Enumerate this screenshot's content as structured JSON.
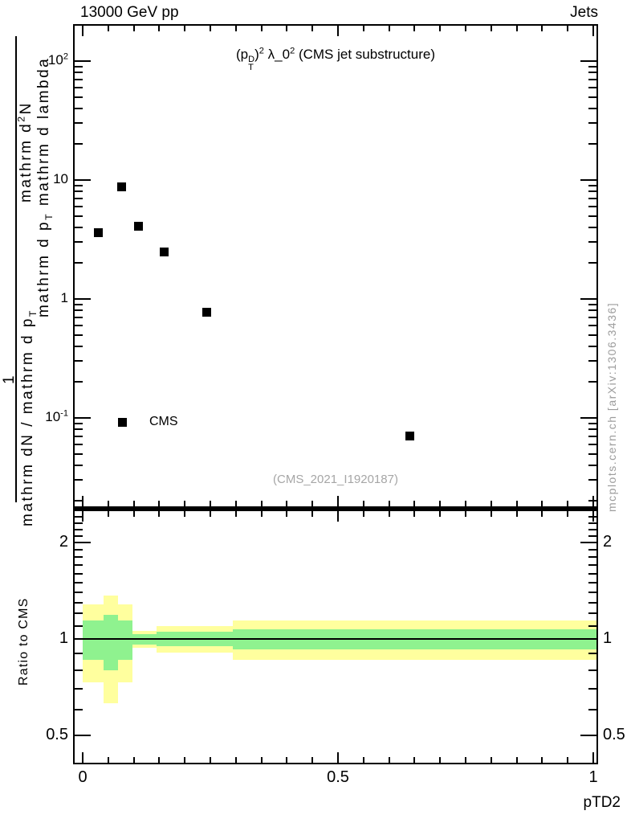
{
  "header": {
    "left": "13000 GeV pp",
    "right": "Jets"
  },
  "side_note": "mcplots.cern.ch [arXiv:1306.3436]",
  "colors": {
    "band_outer": "#ffff9e",
    "band_inner": "#8ff28f",
    "muted_text": "#a6a6a6",
    "marker": "#000000",
    "axis": "#000000"
  },
  "top_panel": {
    "title_segments": [
      {
        "t": "(p"
      },
      {
        "stack": {
          "top": "D",
          "bottom": "T"
        }
      },
      {
        "t": ")"
      },
      {
        "t": "2",
        "sup": true
      },
      {
        "t": " λ_0"
      },
      {
        "t": "2",
        "sup": true
      },
      {
        "t": " (CMS jet substructure)"
      }
    ],
    "legend": {
      "label": "CMS",
      "marker": "filled-square"
    },
    "ref_label": "(CMS_2021_I1920187)",
    "ylabel": {
      "numerator_1": "1",
      "denominator_1_segments": [
        {
          "t": "mathrm dN / mathrm d p"
        },
        {
          "t": "T",
          "sub": true
        }
      ],
      "numerator_2_segments": [
        {
          "t": "mathrm d"
        },
        {
          "t": "2",
          "sup": true
        },
        {
          "t": "N"
        }
      ],
      "denominator_2_segments": [
        {
          "t": "mathrm d p"
        },
        {
          "t": "T",
          "sub": true
        },
        {
          "t": " mathrm d lambda"
        }
      ]
    },
    "yticks_major": [
      {
        "v": 100,
        "segs": [
          {
            "t": "10"
          },
          {
            "t": "2",
            "sup": true
          }
        ]
      },
      {
        "v": 10,
        "segs": [
          {
            "t": "10"
          }
        ]
      },
      {
        "v": 1,
        "segs": [
          {
            "t": "1"
          }
        ]
      },
      {
        "v": 0.1,
        "segs": [
          {
            "t": "10"
          },
          {
            "t": "-1",
            "sup": true
          }
        ]
      }
    ],
    "yticks_minor": [
      0.02,
      0.03,
      0.04,
      0.05,
      0.06,
      0.07,
      0.08,
      0.09,
      0.2,
      0.3,
      0.4,
      0.5,
      0.6,
      0.7,
      0.8,
      0.9,
      2,
      3,
      4,
      5,
      6,
      7,
      8,
      9,
      20,
      30,
      40,
      50,
      60,
      70,
      80,
      90
    ]
  },
  "x_axis": {
    "label": "pTD2",
    "ticks_major": [
      {
        "v": 0,
        "label": "0"
      },
      {
        "v": 0.5,
        "label": "0.5"
      },
      {
        "v": 1,
        "label": "1"
      }
    ],
    "ticks_minor": [
      0.05,
      0.1,
      0.15,
      0.2,
      0.25,
      0.3,
      0.35,
      0.4,
      0.45,
      0.55,
      0.6,
      0.65,
      0.7,
      0.75,
      0.8,
      0.85,
      0.9,
      0.95
    ]
  },
  "ratio_panel": {
    "ylabel": "Ratio to CMS",
    "yticks_major": [
      {
        "v": 2,
        "label": "2"
      },
      {
        "v": 1,
        "label": "1"
      },
      {
        "v": 0.5,
        "label": "0.5"
      }
    ],
    "yticks_minor": [
      2.4,
      2.3,
      2.2,
      2.1,
      1.9,
      1.8,
      1.7,
      1.6,
      1.5,
      1.4,
      1.3,
      1.2,
      1.1,
      0.9,
      0.8,
      0.7,
      0.6
    ]
  },
  "chart_data": {
    "type": "scatter",
    "title": "(p_T^D)^2 λ_0^2 (CMS jet substructure)",
    "xlabel": "pTD2",
    "ylabel": "1/mathrm dN/mathrm d p_T mathrm d^2N / mathrm d p_T mathrm d lambda",
    "x_range": [
      0,
      1
    ],
    "y_scale": "log",
    "y_range": [
      0.017,
      205
    ],
    "grid": false,
    "legend_position": "left-middle",
    "series": [
      {
        "name": "CMS",
        "marker": "filled-square",
        "color": "#000000",
        "x": [
          0.031,
          0.076,
          0.109,
          0.159,
          0.243,
          0.64
        ],
        "y": [
          3.6,
          8.8,
          4.1,
          2.5,
          0.77,
          0.07
        ]
      }
    ],
    "ratio_panel": {
      "ylabel": "Ratio to CMS",
      "y_scale": "log",
      "y_range": [
        0.41,
        2.5
      ],
      "reference_line": 1.0,
      "bands": [
        {
          "x": [
            0.0,
            0.041
          ],
          "outer": [
            1.28,
            0.73
          ],
          "inner": [
            1.14,
            0.86
          ]
        },
        {
          "x": [
            0.041,
            0.069
          ],
          "outer": [
            1.37,
            0.63
          ],
          "inner": [
            1.19,
            0.8
          ]
        },
        {
          "x": [
            0.069,
            0.097
          ],
          "outer": [
            1.28,
            0.73
          ],
          "inner": [
            1.14,
            0.86
          ]
        },
        {
          "x": [
            0.097,
            0.145
          ],
          "outer": [
            1.06,
            0.94
          ],
          "inner": [
            1.035,
            0.963
          ]
        },
        {
          "x": [
            0.145,
            0.294
          ],
          "outer": [
            1.097,
            0.906
          ],
          "inner": [
            1.053,
            0.949
          ]
        },
        {
          "x": [
            0.294,
            1.01
          ],
          "outer": [
            1.14,
            0.86
          ],
          "inner": [
            1.072,
            0.928
          ]
        }
      ]
    }
  }
}
